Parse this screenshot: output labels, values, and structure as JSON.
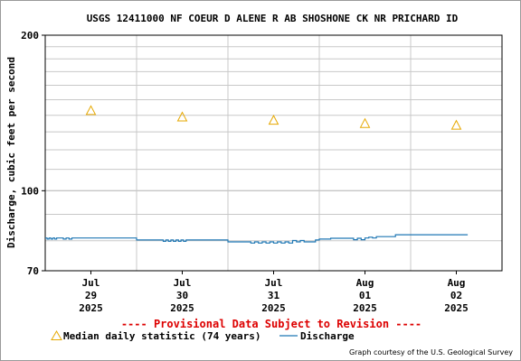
{
  "chart_data": {
    "type": "line",
    "title": "USGS 12411000 NF COEUR D ALENE R AB SHOSHONE CK NR PRICHARD ID",
    "ylabel": "Discharge, cubic feet per second",
    "xlabel": "",
    "y_scale": "log",
    "ylim": [
      70,
      200
    ],
    "y_ticks": [
      "200",
      "100",
      "70"
    ],
    "y_tick_values": [
      200,
      100,
      70
    ],
    "x_range": [
      "2025-07-29T00:00",
      "2025-08-03T00:00"
    ],
    "x_ticks": [
      {
        "time": "2025-07-29T12:00",
        "label": [
          "Jul",
          "29",
          "2025"
        ]
      },
      {
        "time": "2025-07-30T12:00",
        "label": [
          "Jul",
          "30",
          "2025"
        ]
      },
      {
        "time": "2025-07-31T12:00",
        "label": [
          "Jul",
          "31",
          "2025"
        ]
      },
      {
        "time": "2025-08-01T12:00",
        "label": [
          "Aug",
          "01",
          "2025"
        ]
      },
      {
        "time": "2025-08-02T12:00",
        "label": [
          "Aug",
          "02",
          "2025"
        ]
      }
    ],
    "grid": true,
    "series": [
      {
        "name": "Median daily statistic (74 years)",
        "kind": "marker",
        "marker": "triangle",
        "color": "#e6a800",
        "x": [
          "2025-07-29T12:00",
          "2025-07-30T12:00",
          "2025-07-31T12:00",
          "2025-08-01T12:00",
          "2025-08-02T12:00"
        ],
        "y": [
          143,
          139,
          137,
          135,
          134
        ]
      },
      {
        "name": "Discharge",
        "kind": "line",
        "color": "#1f77b4",
        "x": [
          "2025-07-29T00:00",
          "2025-07-29T00:30",
          "2025-07-29T01:00",
          "2025-07-29T01:30",
          "2025-07-29T02:00",
          "2025-07-29T02:30",
          "2025-07-29T03:00",
          "2025-07-29T04:00",
          "2025-07-29T04:45",
          "2025-07-29T05:30",
          "2025-07-29T06:15",
          "2025-07-29T07:00",
          "2025-07-29T08:00",
          "2025-07-29T09:00",
          "2025-07-29T12:00",
          "2025-07-29T18:00",
          "2025-07-30T00:00",
          "2025-07-30T04:30",
          "2025-07-30T06:00",
          "2025-07-30T07:00",
          "2025-07-30T07:40",
          "2025-07-30T08:20",
          "2025-07-30T09:00",
          "2025-07-30T09:40",
          "2025-07-30T10:20",
          "2025-07-30T11:00",
          "2025-07-30T11:40",
          "2025-07-30T12:20",
          "2025-07-30T13:00",
          "2025-07-30T14:00",
          "2025-07-30T18:00",
          "2025-07-31T00:00",
          "2025-07-31T03:00",
          "2025-07-31T05:00",
          "2025-07-31T06:00",
          "2025-07-31T07:00",
          "2025-07-31T08:00",
          "2025-07-31T09:00",
          "2025-07-31T10:00",
          "2025-07-31T11:00",
          "2025-07-31T12:00",
          "2025-07-31T13:00",
          "2025-07-31T14:00",
          "2025-07-31T15:00",
          "2025-07-31T16:00",
          "2025-07-31T17:00",
          "2025-07-31T18:00",
          "2025-07-31T19:00",
          "2025-07-31T20:00",
          "2025-07-31T21:00",
          "2025-07-31T22:00",
          "2025-07-31T23:00",
          "2025-08-01T00:00",
          "2025-08-01T03:00",
          "2025-08-01T06:00",
          "2025-08-01T07:00",
          "2025-08-01T08:00",
          "2025-08-01T09:00",
          "2025-08-01T10:00",
          "2025-08-01T11:00",
          "2025-08-01T12:00",
          "2025-08-01T13:00",
          "2025-08-01T14:00",
          "2025-08-01T15:00",
          "2025-08-01T16:00",
          "2025-08-01T18:00",
          "2025-08-01T20:00",
          "2025-08-01T22:00",
          "2025-08-02T00:00",
          "2025-08-02T03:00",
          "2025-08-02T06:00",
          "2025-08-02T09:00",
          "2025-08-02T12:00",
          "2025-08-02T15:00"
        ],
        "y": [
          81,
          80.6,
          81,
          80.6,
          81,
          80.6,
          81,
          81,
          80.6,
          81,
          80.6,
          81,
          81,
          81,
          81,
          81,
          80.3,
          80.3,
          80.3,
          79.8,
          80.3,
          79.8,
          80.3,
          79.8,
          80.3,
          79.8,
          80.3,
          79.8,
          80.3,
          80.3,
          80.3,
          79.6,
          79.6,
          79.6,
          79.2,
          79.6,
          79.2,
          79.6,
          79.2,
          79.6,
          79.2,
          79.6,
          79.2,
          79.6,
          79.2,
          80.1,
          79.6,
          80.1,
          79.6,
          79.6,
          79.6,
          80.3,
          80.6,
          80.9,
          80.9,
          80.9,
          80.9,
          80.4,
          80.9,
          80.4,
          81,
          81.3,
          81,
          81.5,
          81.5,
          81.5,
          82.2,
          82.2,
          82.2,
          82.2,
          82.2,
          82.2,
          82.2,
          82.2
        ]
      }
    ],
    "legend_position": "bottom",
    "provisional_note": "---- Provisional Data Subject to Revision ----",
    "credit": "Graph courtesy of the U.S. Geological Survey"
  }
}
